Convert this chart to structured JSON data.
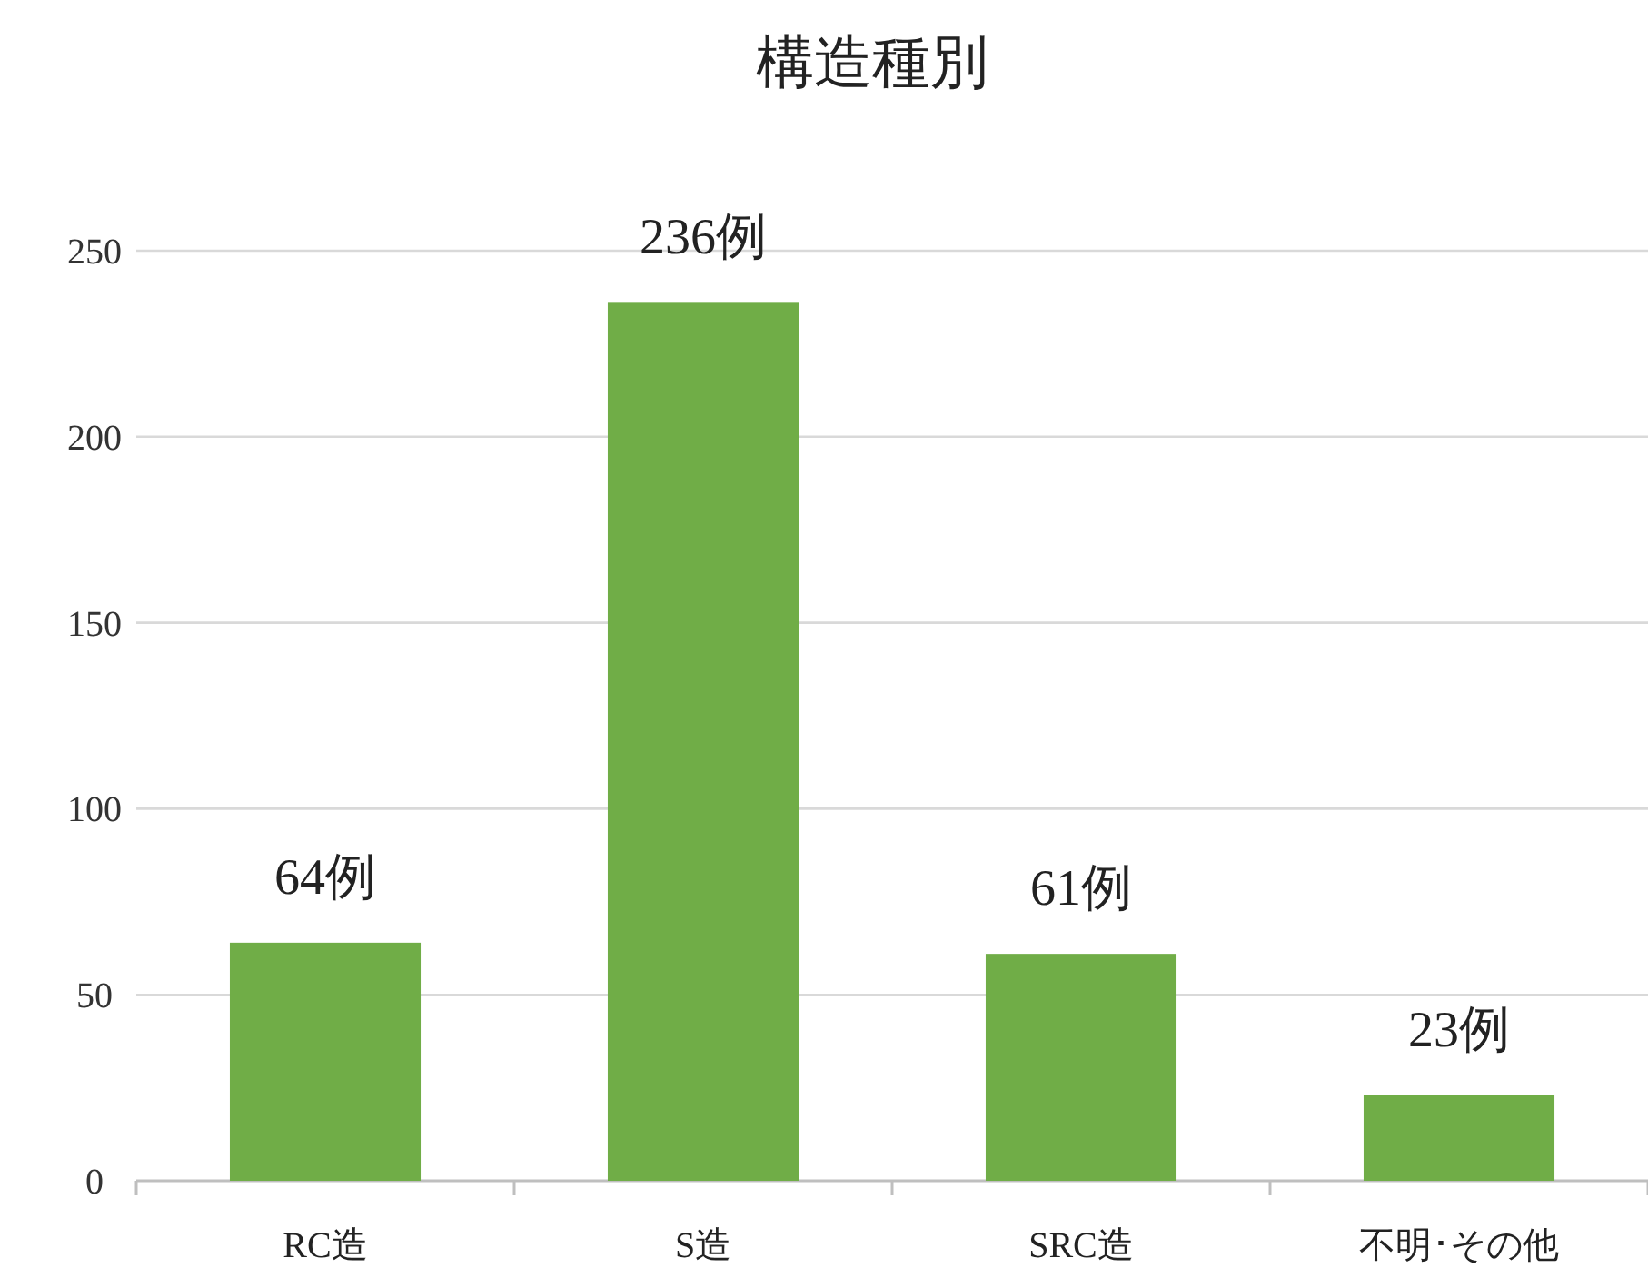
{
  "chart_data": {
    "type": "bar",
    "title": "構造種別",
    "categories": [
      "RC造",
      "S造",
      "SRC造",
      "不明･その他"
    ],
    "values": [
      64,
      236,
      61,
      23
    ],
    "color": "#70ad47",
    "value_labels": [
      "64例",
      "236例",
      "61例",
      "23例"
    ],
    "ylim": [
      0,
      250
    ],
    "yticks": [
      0,
      50,
      100,
      150,
      200,
      250
    ],
    "grid": "y"
  }
}
